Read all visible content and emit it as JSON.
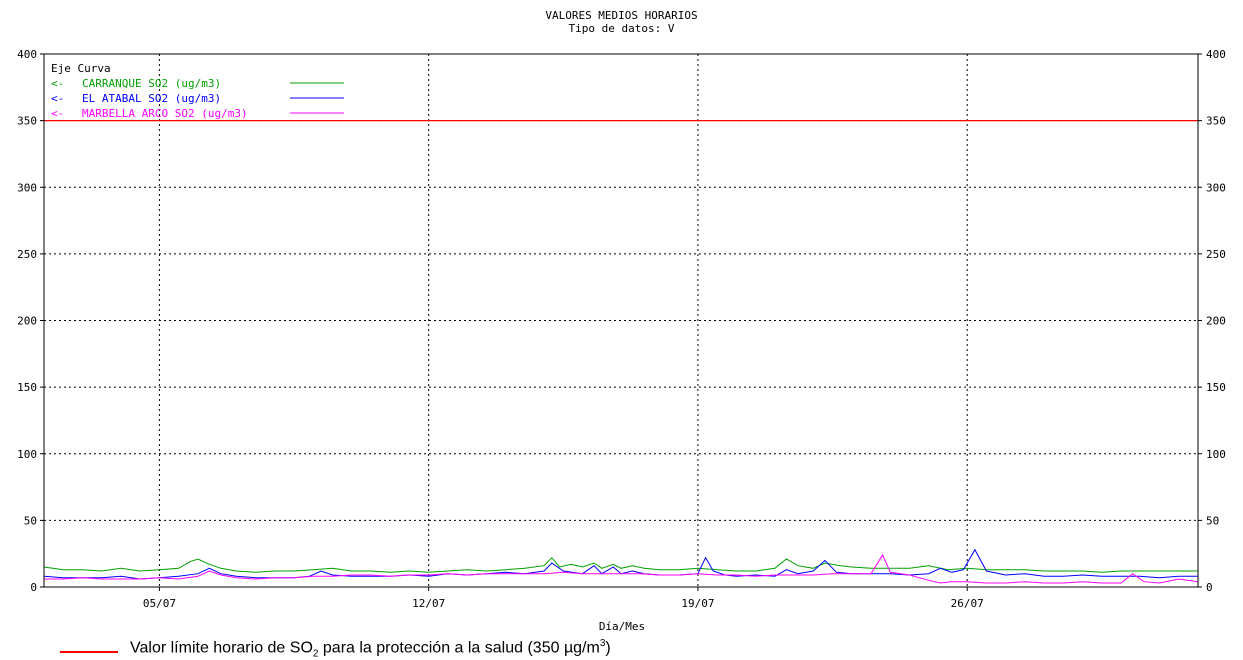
{
  "chart_data": {
    "type": "line",
    "title": "VALORES MEDIOS HORARIOS",
    "subtitle": "Tipo de datos:  V",
    "xlabel": "Día/Mes",
    "ylabel": "",
    "ylim": [
      0,
      400
    ],
    "y_ticks": [
      0,
      50,
      100,
      150,
      200,
      250,
      300,
      350,
      400
    ],
    "y_tick_labels": [
      "0",
      "50",
      "100",
      "150",
      "200",
      "250",
      "300",
      "350",
      "400"
    ],
    "x_domain_days": [
      2,
      32
    ],
    "x_ticks": [
      {
        "day": 5,
        "label": "05/07"
      },
      {
        "day": 12,
        "label": "12/07"
      },
      {
        "day": 19,
        "label": "19/07"
      },
      {
        "day": 26,
        "label": "26/07"
      }
    ],
    "grid": true,
    "legend_header": "Eje Curva",
    "legend_placement": "top-left",
    "legend": [
      {
        "axis": "<-",
        "label": "CARRANQUE SO2  (ug/m3)",
        "color": "#00a000"
      },
      {
        "axis": "<-",
        "label": "EL ATABAL SO2  (ug/m3)",
        "color": "#0000ff"
      },
      {
        "axis": "<-",
        "label": "MARBELLA ARCO SO2  (ug/m3)",
        "color": "#ff00ff"
      }
    ],
    "reference_line": {
      "value": 350,
      "color": "#ff0000"
    },
    "series": [
      {
        "name": "CARRANQUE SO2  (ug/m3)",
        "color": "#00a000",
        "x": [
          2,
          2.5,
          3,
          3.5,
          4,
          4.5,
          5,
          5.5,
          5.8,
          6,
          6.3,
          6.6,
          7,
          7.5,
          8,
          8.5,
          9,
          9.5,
          10,
          10.5,
          11,
          11.5,
          12,
          12.5,
          13,
          13.5,
          14,
          14.5,
          15,
          15.2,
          15.4,
          15.7,
          16,
          16.3,
          16.5,
          16.8,
          17,
          17.3,
          17.6,
          18,
          18.5,
          19,
          19.5,
          20,
          20.5,
          21,
          21.3,
          21.6,
          22,
          22.3,
          22.7,
          23,
          23.5,
          24,
          24.5,
          25,
          25.5,
          26,
          26.5,
          27,
          27.5,
          28,
          28.5,
          29,
          29.5,
          30,
          30.5,
          31,
          31.5,
          32
        ],
        "y": [
          15,
          13,
          13,
          12,
          14,
          12,
          13,
          14,
          19,
          21,
          17,
          14,
          12,
          11,
          12,
          12,
          13,
          14,
          12,
          12,
          11,
          12,
          11,
          12,
          13,
          12,
          13,
          14,
          16,
          22,
          15,
          17,
          15,
          18,
          14,
          17,
          14,
          16,
          14,
          13,
          13,
          14,
          13,
          12,
          12,
          14,
          21,
          16,
          14,
          18,
          16,
          15,
          14,
          14,
          14,
          16,
          13,
          14,
          13,
          13,
          13,
          12,
          12,
          12,
          11,
          12,
          12,
          12,
          12,
          12
        ]
      },
      {
        "name": "EL ATABAL SO2  (ug/m3)",
        "color": "#0000ff",
        "x": [
          2,
          2.5,
          3,
          3.5,
          4,
          4.5,
          5,
          5.5,
          6,
          6.3,
          6.6,
          7,
          7.5,
          8,
          8.5,
          8.9,
          9.2,
          9.5,
          10,
          10.5,
          11,
          11.5,
          12,
          12.5,
          13,
          13.5,
          14,
          14.5,
          15,
          15.2,
          15.5,
          16,
          16.3,
          16.5,
          16.8,
          17,
          17.3,
          17.6,
          18,
          18.5,
          19,
          19.2,
          19.4,
          19.7,
          20,
          20.5,
          21,
          21.3,
          21.6,
          22,
          22.3,
          22.6,
          23,
          23.5,
          24,
          24.5,
          25,
          25.3,
          25.6,
          25.9,
          26.2,
          26.5,
          27,
          27.5,
          28,
          28.5,
          29,
          29.5,
          30,
          30.5,
          31,
          31.5,
          32
        ],
        "y": [
          8,
          7,
          7,
          7,
          8,
          6,
          7,
          8,
          10,
          14,
          10,
          8,
          7,
          7,
          7,
          8,
          12,
          9,
          8,
          8,
          8,
          9,
          8,
          10,
          9,
          10,
          11,
          10,
          12,
          18,
          12,
          10,
          16,
          10,
          15,
          10,
          12,
          10,
          9,
          9,
          10,
          22,
          12,
          9,
          8,
          9,
          8,
          13,
          10,
          12,
          20,
          11,
          10,
          10,
          10,
          9,
          10,
          14,
          11,
          13,
          28,
          12,
          9,
          10,
          8,
          8,
          9,
          8,
          8,
          8,
          7,
          8,
          8
        ]
      },
      {
        "name": "MARBELLA ARCO SO2  (ug/m3)",
        "color": "#ff00ff",
        "x": [
          2,
          2.5,
          3,
          3.5,
          4,
          4.5,
          5,
          5.5,
          6,
          6.3,
          6.6,
          7,
          7.5,
          8,
          8.5,
          9,
          9.5,
          10,
          10.5,
          11,
          11.5,
          12,
          12.5,
          13,
          13.5,
          14,
          14.5,
          15,
          15.5,
          16,
          16.5,
          17,
          17.5,
          18,
          18.5,
          19,
          19.5,
          20,
          20.5,
          21,
          21.5,
          22,
          22.5,
          23,
          23.5,
          23.8,
          24,
          24.5,
          25,
          25.3,
          25.6,
          26,
          26.5,
          27,
          27.5,
          28,
          28.5,
          29,
          29.5,
          30,
          30.3,
          30.6,
          31,
          31.5,
          32
        ],
        "y": [
          6,
          6,
          7,
          6,
          6,
          6,
          7,
          6,
          8,
          12,
          9,
          7,
          6,
          7,
          7,
          8,
          8,
          9,
          9,
          8,
          9,
          9,
          10,
          9,
          10,
          10,
          10,
          10,
          11,
          10,
          10,
          10,
          10,
          9,
          9,
          10,
          9,
          9,
          8,
          9,
          9,
          9,
          10,
          10,
          10,
          24,
          11,
          9,
          5,
          3,
          4,
          4,
          3,
          3,
          4,
          3,
          3,
          4,
          3,
          3,
          10,
          4,
          3,
          6,
          4
        ]
      }
    ]
  }
}
